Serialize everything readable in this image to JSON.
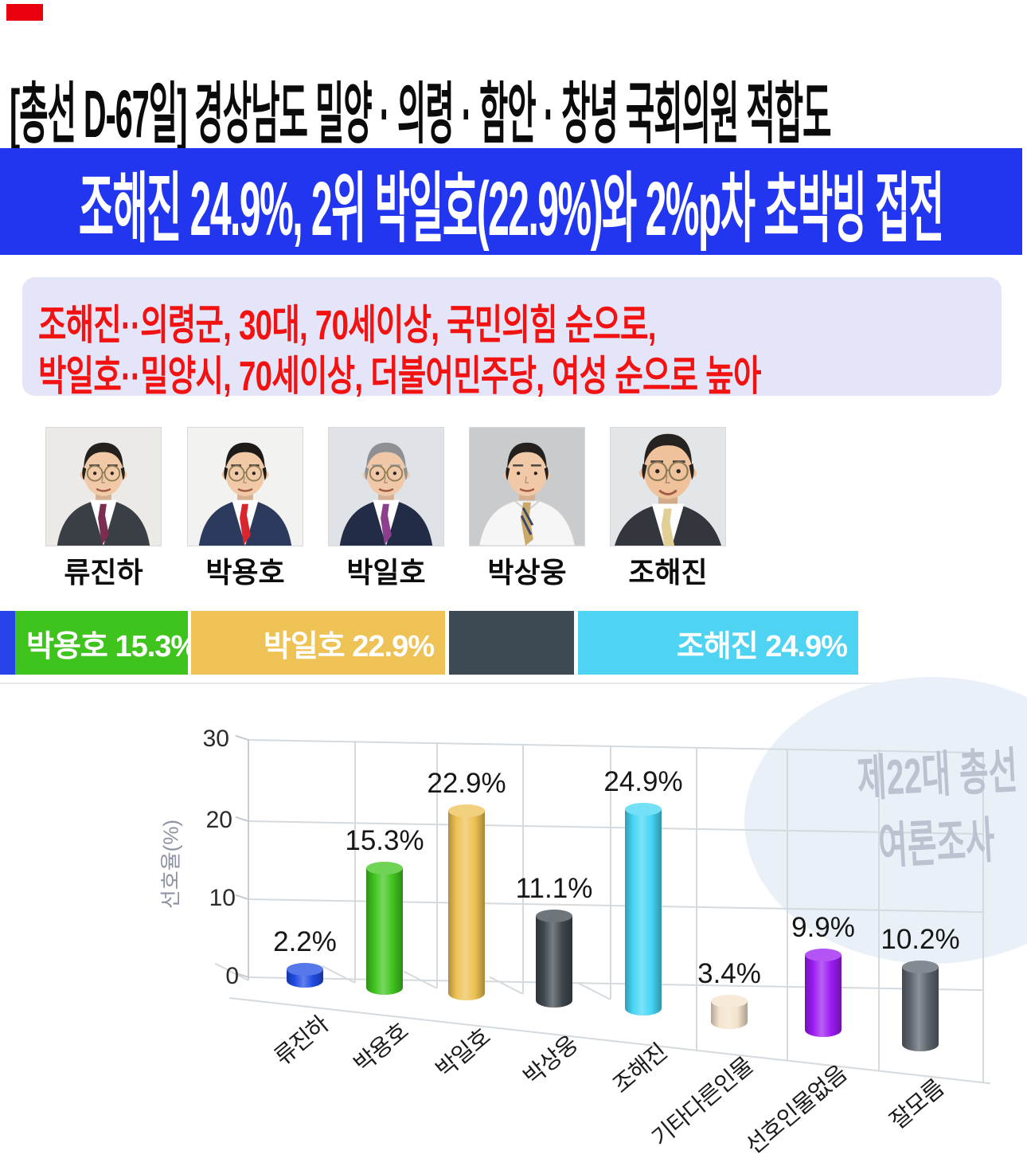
{
  "header": {
    "title": "[총선 D-67일] 경상남도 밀양 · 의령 · 함안 · 창녕 국회의원 적합도"
  },
  "banner": {
    "text": "조해진 24.9%, 2위 박일호(22.9%)와 2%p차 초박빙 접전",
    "bg": "#2236f0",
    "color": "#ffffff"
  },
  "summary_box": {
    "bg": "#e4e5f8",
    "color": "#f21212",
    "lines": [
      "조해진··의령군, 30대, 70세이상, 국민의힘 순으로,",
      "박일호··밀양시, 70세이상, 더불어민주당, 여성 순으로 높아"
    ]
  },
  "accent": {
    "corner_red": "#e8000f"
  },
  "candidates": [
    {
      "name": "류진하",
      "photo": {
        "bg": "#eceae6",
        "suit": "#3a3f46",
        "shirt": "#ffffff",
        "tie": "#7c2d52",
        "hair": "#23201e",
        "skin": "#f2c9a6",
        "glasses": true,
        "jacket": true,
        "headScale": 1.0
      }
    },
    {
      "name": "박용호",
      "photo": {
        "bg": "#f2f3f1",
        "suit": "#2c3a5e",
        "shirt": "#ffffff",
        "tie": "#d8262c",
        "hair": "#1d1a18",
        "skin": "#f2c9a6",
        "glasses": true,
        "jacket": true,
        "headScale": 1.0
      }
    },
    {
      "name": "박일호",
      "photo": {
        "bg": "#dfe3e8",
        "suit": "#232c46",
        "shirt": "#ffffff",
        "tie": "#8c3f8c",
        "hair": "#8e9094",
        "skin": "#f0c8a8",
        "glasses": true,
        "jacket": true,
        "headScale": 1.0
      }
    },
    {
      "name": "박상웅",
      "photo": {
        "bg": "#c9cbcd",
        "suit": "#f6f6f6",
        "shirt": "#ffffff",
        "tie": "#c9a96a",
        "hair": "#23201e",
        "skin": "#f2c9a6",
        "glasses": false,
        "jacket": false,
        "headScale": 1.0
      }
    },
    {
      "name": "조해진",
      "photo": {
        "bg": "#e3e6e9",
        "suit": "#33373d",
        "shirt": "#ffffff",
        "tie": "#e2cf96",
        "hair": "#26221f",
        "skin": "#f0c29c",
        "glasses": true,
        "jacket": true,
        "headScale": 1.22
      }
    }
  ],
  "stacked_bar": {
    "segments": [
      {
        "label": "",
        "color": "#2644ea",
        "align": "left"
      },
      {
        "label": "박용호 15.3%",
        "color": "#3fc41e",
        "align": "left"
      },
      {
        "label": "박일호 22.9%",
        "color": "#eec254",
        "align": "right"
      },
      {
        "label": "",
        "color": "#3d4a53",
        "align": "left"
      },
      {
        "label": "조해진 24.9%",
        "color": "#4ed3f3",
        "align": "right"
      }
    ]
  },
  "chart_data": {
    "type": "bar",
    "style": "3d-cylinder",
    "categories": [
      "류진하",
      "박용호",
      "박일호",
      "박상웅",
      "조해진",
      "기타다른인물",
      "선호인물없음",
      "잘모름"
    ],
    "values": [
      2.2,
      15.3,
      22.9,
      11.1,
      24.9,
      3.4,
      9.9,
      10.2
    ],
    "data_labels": [
      "2.2%",
      "15.3%",
      "22.9%",
      "11.1%",
      "24.9%",
      "3.4%",
      "9.9%",
      "10.2%"
    ],
    "colors": [
      "#1f4be4",
      "#3fc41e",
      "#edc253",
      "#3e474f",
      "#45d5f4",
      "#f4e3cc",
      "#9b1bf2",
      "#5b636c"
    ],
    "ylabel": "선호율(%)",
    "yticks": [
      30,
      20,
      10,
      0
    ],
    "ylim": [
      0,
      30
    ],
    "grid": true,
    "watermark": {
      "line1": "제22대 총선",
      "line2": "여론조사"
    }
  }
}
